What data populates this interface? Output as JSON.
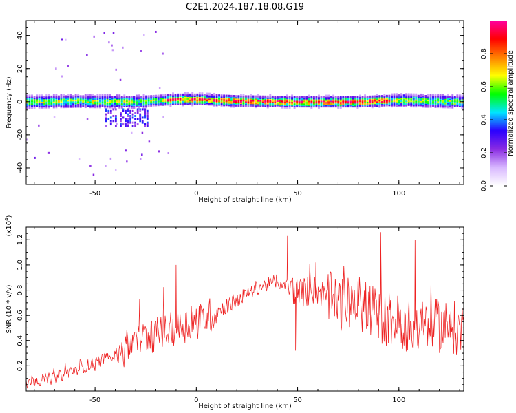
{
  "title": "C2E1.2024.187.18.08.G19",
  "chart_data": [
    {
      "type": "heatmap",
      "xlabel": "Height of straight line (km)",
      "ylabel": "Frequency (Hz)",
      "xlim": [
        -84,
        132
      ],
      "ylim": [
        -50,
        49
      ],
      "xticks": [
        -50,
        0,
        50,
        100
      ],
      "yticks": [
        -40,
        -20,
        0,
        20,
        40
      ],
      "colorbar": {
        "label": "Normalized spectral amplitude",
        "range": [
          0,
          1
        ],
        "ticks": [
          "0.0",
          "0.2",
          "0.4",
          "0.6",
          "0.8"
        ],
        "colormap": [
          "#ffffff",
          "#d8b8ff",
          "#8a2be2",
          "#2a00ff",
          "#00e5ff",
          "#00ff00",
          "#ffff00",
          "#ff8000",
          "#ff0000",
          "#ff00a0"
        ]
      },
      "ridge_center_freq": [
        {
          "x": -84,
          "f": 0
        },
        {
          "x": -60,
          "f": 0.5
        },
        {
          "x": -30,
          "f": 0
        },
        {
          "x": -10,
          "f": 1.5
        },
        {
          "x": 0,
          "f": 1.5
        },
        {
          "x": 20,
          "f": 0.5
        },
        {
          "x": 50,
          "f": 0
        },
        {
          "x": 80,
          "f": 0
        },
        {
          "x": 100,
          "f": 1
        },
        {
          "x": 132,
          "f": 0
        }
      ]
    },
    {
      "type": "line",
      "xlabel": "Height of straight line (km)",
      "ylabel": "SNR (10 * v/v)",
      "y_multiplier": "(x10^4)",
      "xlim": [
        -84,
        132
      ],
      "ylim": [
        0,
        1.3
      ],
      "xticks": [
        -50,
        0,
        50,
        100
      ],
      "yticks": [
        0.2,
        0.4,
        0.6,
        0.8,
        1.0,
        1.2
      ],
      "ytick_labels": [
        "0.2",
        "0.4",
        "0.6",
        "0.8",
        "1.0",
        "1.2"
      ],
      "line_color": "#ee2222",
      "trend": [
        {
          "x": -84,
          "y": 0.08
        },
        {
          "x": -70,
          "y": 0.1
        },
        {
          "x": -60,
          "y": 0.17
        },
        {
          "x": -50,
          "y": 0.22
        },
        {
          "x": -40,
          "y": 0.3
        },
        {
          "x": -30,
          "y": 0.4
        },
        {
          "x": -20,
          "y": 0.45
        },
        {
          "x": -10,
          "y": 0.5
        },
        {
          "x": 0,
          "y": 0.55
        },
        {
          "x": 10,
          "y": 0.63
        },
        {
          "x": 20,
          "y": 0.72
        },
        {
          "x": 30,
          "y": 0.82
        },
        {
          "x": 40,
          "y": 0.86
        },
        {
          "x": 45,
          "y": 0.84
        },
        {
          "x": 50,
          "y": 0.78
        },
        {
          "x": 60,
          "y": 0.8
        },
        {
          "x": 70,
          "y": 0.68
        },
        {
          "x": 80,
          "y": 0.7
        },
        {
          "x": 90,
          "y": 0.6
        },
        {
          "x": 100,
          "y": 0.55
        },
        {
          "x": 110,
          "y": 0.5
        },
        {
          "x": 120,
          "y": 0.52
        },
        {
          "x": 132,
          "y": 0.48
        }
      ],
      "notable_points": [
        {
          "x": 45,
          "y": 1.23
        },
        {
          "x": 49,
          "y": 0.32
        },
        {
          "x": 91,
          "y": 1.26
        },
        {
          "x": -10,
          "y": 1.0
        },
        {
          "x": 59,
          "y": 1.02
        },
        {
          "x": 108,
          "y": 1.2
        }
      ]
    }
  ]
}
